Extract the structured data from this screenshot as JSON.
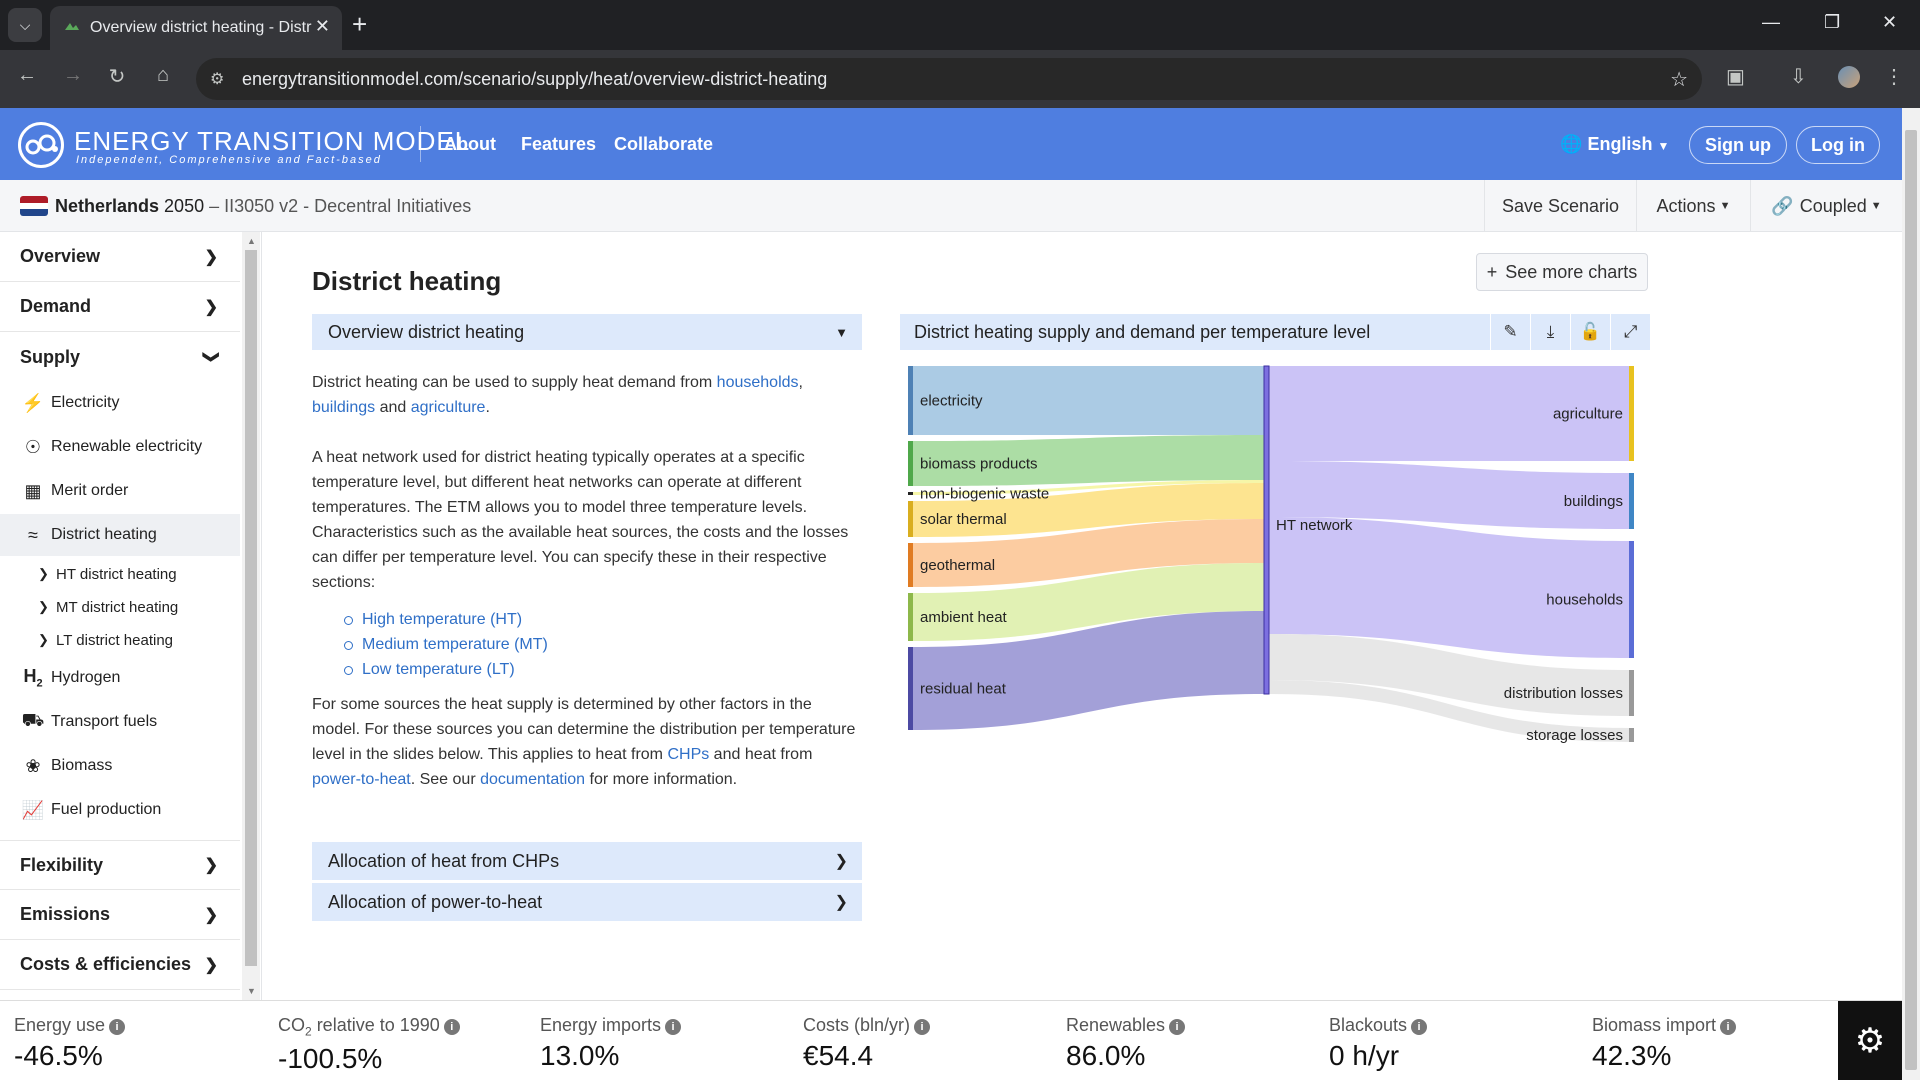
{
  "browser": {
    "tab_title": "Overview district heating - Distr",
    "url": "energytransitionmodel.com/scenario/supply/heat/overview-district-heating"
  },
  "header": {
    "logo_title": "ENERGY TRANSITION MODEL",
    "logo_subtitle": "Independent, Comprehensive and Fact-based",
    "nav": [
      "About",
      "Features",
      "Collaborate"
    ],
    "language": "English",
    "signup": "Sign up",
    "login": "Log in"
  },
  "scenario": {
    "country": "Netherlands",
    "year": "2050",
    "name": "– II3050 v2 - Decentral Initiatives",
    "save": "Save Scenario",
    "actions": "Actions",
    "coupled": "Coupled",
    "flag_colors": [
      "#ae1c28",
      "#ffffff",
      "#21468b"
    ]
  },
  "sidebar": {
    "overview": "Overview",
    "demand": "Demand",
    "supply": "Supply",
    "supply_items": [
      {
        "label": "Electricity",
        "icon": "lightning-icon"
      },
      {
        "label": "Renewable electricity",
        "icon": "renewable-icon"
      },
      {
        "label": "Merit order",
        "icon": "merit-order-icon"
      },
      {
        "label": "District heating",
        "icon": "heat-icon"
      }
    ],
    "heating_sub": [
      "HT district heating",
      "MT district heating",
      "LT district heating"
    ],
    "other_items": [
      {
        "label": "Hydrogen",
        "icon": "hydrogen-icon"
      },
      {
        "label": "Transport fuels",
        "icon": "car-icon"
      },
      {
        "label": "Biomass",
        "icon": "plant-icon"
      },
      {
        "label": "Fuel production",
        "icon": "chart-icon"
      }
    ],
    "flexibility": "Flexibility",
    "emissions": "Emissions",
    "costs": "Costs & efficiencies"
  },
  "main": {
    "title": "District heating",
    "see_more": "See more charts",
    "dropdown": "Overview district heating",
    "p1_pre": "District heating can be used to supply heat demand from ",
    "p1_link1": "households",
    "p1_sep1": ",",
    "p1_link2": "buildings",
    "p1_and": " and ",
    "p1_link3": "agriculture",
    "p1_end": ".",
    "p2": "A heat network used for district heating typically operates at a specific temperature level, but different heat networks can operate at different temperatures. The ETM allows you to model three temperature levels. Characteristics such as the available heat sources, the costs and the losses can differ per temperature level. You can specify these in their respective sections:",
    "levels": [
      "High temperature (HT)",
      "Medium temperature (MT)",
      "Low temperature (LT)"
    ],
    "p3_pre": "For some sources the heat supply is determined by other factors in the model. For these sources you can determine the distribution per temperature level in the slides below. This applies to heat from ",
    "p3_link1": "CHPs",
    "p3_mid1": " and heat from ",
    "p3_link2": "power-to-heat",
    "p3_mid2": ". See our ",
    "p3_link3": "documentation",
    "p3_end": " for more information.",
    "acc1": "Allocation of heat from CHPs",
    "acc2": "Allocation of power-to-heat"
  },
  "chart": {
    "header": "District heating supply and demand per temperature level",
    "tools": [
      "pencil-icon",
      "download-icon",
      "unlock-icon",
      "expand-icon"
    ]
  },
  "chart_data": {
    "type": "sankey",
    "hub": "HT network",
    "sources": [
      {
        "name": "electricity",
        "value": 69,
        "color": "#a6c8e3",
        "bar": "#4e81b5"
      },
      {
        "name": "biomass products",
        "value": 45,
        "color": "#a8dba0",
        "bar": "#4fa84a"
      },
      {
        "name": "non-biogenic waste",
        "value": 3,
        "color": "#f5f5a3",
        "bar": "#222222"
      },
      {
        "name": "solar thermal",
        "value": 36,
        "color": "#fde38a",
        "bar": "#d9ae1f"
      },
      {
        "name": "geothermal",
        "value": 44,
        "color": "#fcc99c",
        "bar": "#e07b22"
      },
      {
        "name": "ambient heat",
        "value": 48,
        "color": "#dff0b0",
        "bar": "#8db84a"
      },
      {
        "name": "residual heat",
        "value": 83,
        "color": "#9e9bd6",
        "bar": "#4c4aa3"
      }
    ],
    "targets": [
      {
        "name": "agriculture",
        "value": 95,
        "color": "#c8c0f5",
        "bar": "#e8c21f"
      },
      {
        "name": "buildings",
        "value": 56,
        "color": "#c8c0f5",
        "bar": "#3f86c5"
      },
      {
        "name": "households",
        "value": 117,
        "color": "#c8c0f5",
        "bar": "#5b6dd6"
      },
      {
        "name": "distribution losses",
        "value": 46,
        "color": "#e6e6e6",
        "bar": "#999999"
      },
      {
        "name": "storage losses",
        "value": 14,
        "color": "#e6e6e6",
        "bar": "#999999"
      }
    ]
  },
  "status": [
    {
      "label": "Energy use",
      "value": "-46.5%"
    },
    {
      "label_pre": "CO",
      "label_sub": "2",
      "label": " relative to 1990",
      "value": "-100.5%"
    },
    {
      "label": "Energy imports",
      "value": "13.0%"
    },
    {
      "label": "Costs (bln/yr)",
      "value": "€54.4"
    },
    {
      "label": "Renewables",
      "value": "86.0%"
    },
    {
      "label": "Blackouts",
      "value": "0 h/yr"
    },
    {
      "label": "Biomass import",
      "value": "42.3%"
    }
  ]
}
